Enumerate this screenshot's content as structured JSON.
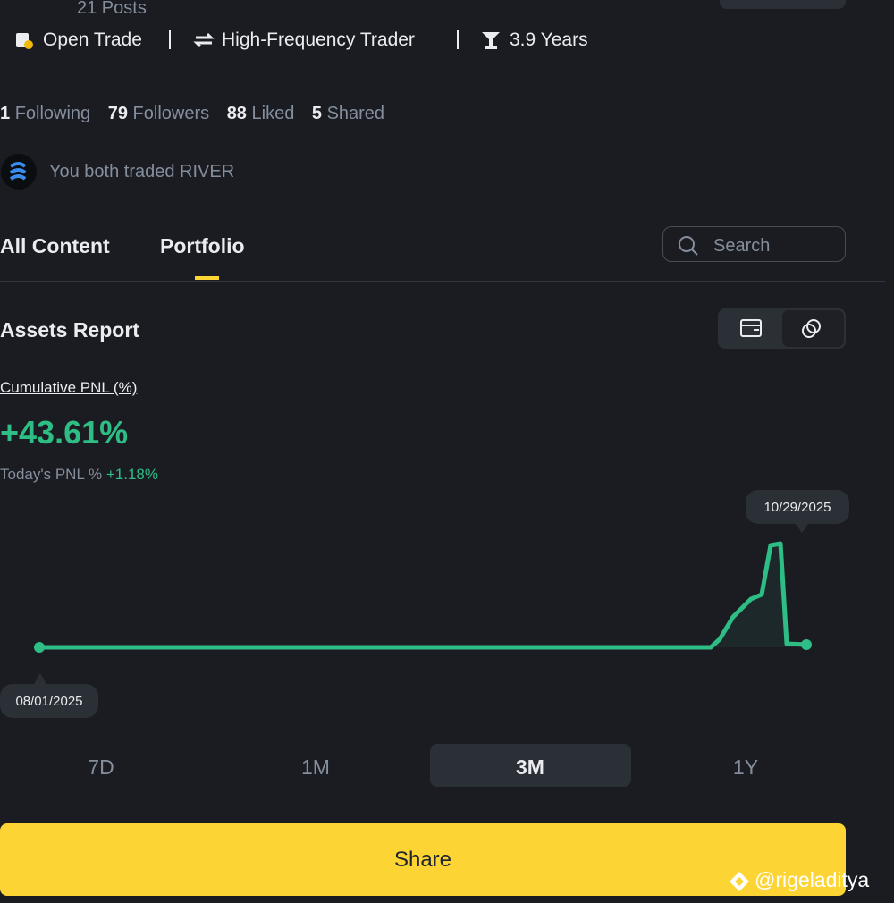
{
  "header": {
    "posts": "21 Posts",
    "badges": [
      "Open Trade",
      "High-Frequency Trader",
      "3.9 Years"
    ]
  },
  "stats": [
    {
      "count": 1,
      "label": "Following"
    },
    {
      "count": 79,
      "label": "Followers"
    },
    {
      "count": 88,
      "label": "Liked"
    },
    {
      "count": 5,
      "label": "Shared"
    }
  ],
  "mutual": "You both traded RIVER",
  "tabs": [
    "All Content",
    "Portfolio"
  ],
  "search": "Search",
  "assets": {
    "title": "Assets Report",
    "pnl_label": "Cumulative PNL (%)",
    "pnl_value": "+43.61%",
    "today_label": "Today's PNL %",
    "today_value": "+1.18%",
    "end_date": "10/29/2025",
    "start_date": "08/01/2025",
    "periods": [
      "7D",
      "1M",
      "3M",
      "1Y"
    ]
  },
  "share": "Share",
  "watermark": "@rigeladitya"
}
